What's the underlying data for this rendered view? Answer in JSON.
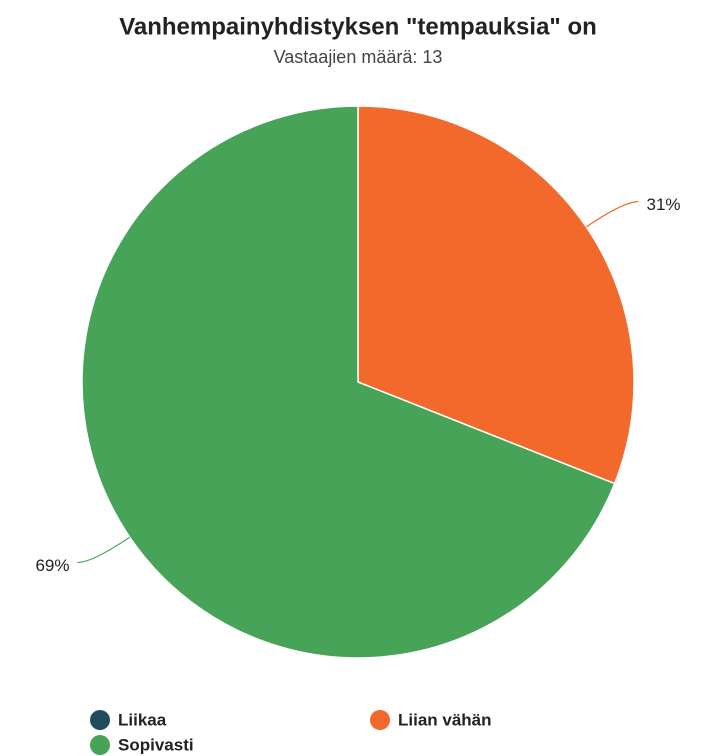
{
  "chart_data": {
    "type": "pie",
    "title": "Vanhempainyhdistyksen \"tempauksia\" on",
    "subtitle": "Vastaajien määrä: 13",
    "categories": [
      "Liikaa",
      "Liian vähän",
      "Sopivasti"
    ],
    "values": [
      0,
      31,
      69
    ],
    "value_labels": [
      null,
      "31%",
      "69%"
    ],
    "colors": [
      "#1f4b5c",
      "#f2692b",
      "#46a358"
    ],
    "legend": "bottom"
  }
}
